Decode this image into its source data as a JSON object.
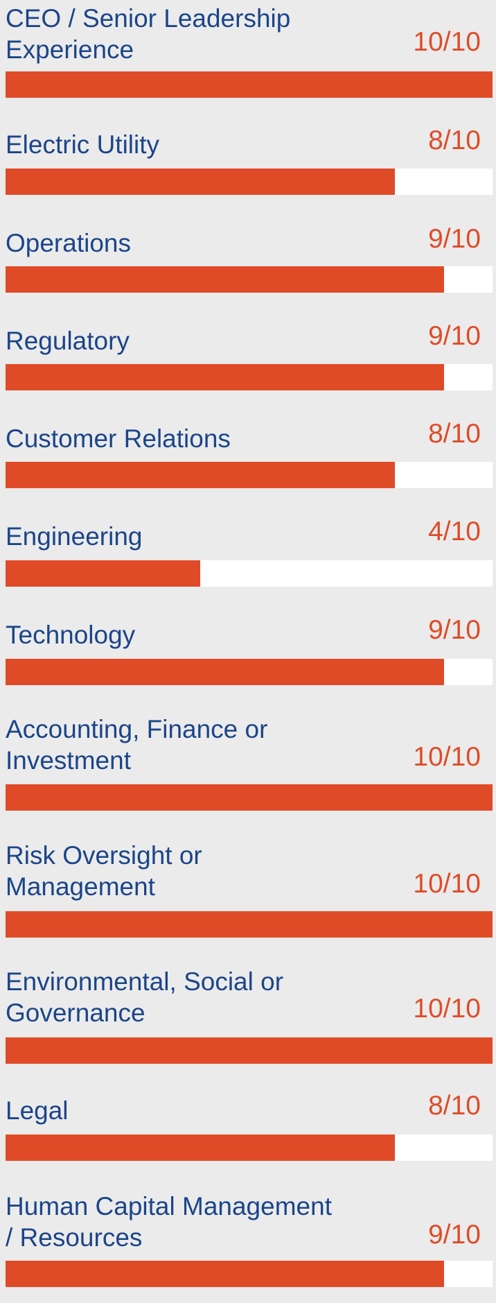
{
  "colors": {
    "background": "#ebebeb",
    "label": "#1b4589",
    "accent": "#e04b27",
    "track": "#ffffff"
  },
  "chart_data": {
    "type": "bar",
    "orientation": "horizontal",
    "max": 10,
    "items": [
      {
        "label": "CEO / Senior Leadership Experience",
        "lines": [
          "CEO / Senior Leadership",
          "Experience"
        ],
        "value": 10,
        "score_text": "10/10"
      },
      {
        "label": "Electric Utility",
        "lines": [
          "Electric Utility"
        ],
        "value": 8,
        "score_text": "8/10"
      },
      {
        "label": "Operations",
        "lines": [
          "Operations"
        ],
        "value": 9,
        "score_text": "9/10"
      },
      {
        "label": "Regulatory",
        "lines": [
          "Regulatory"
        ],
        "value": 9,
        "score_text": "9/10"
      },
      {
        "label": "Customer Relations",
        "lines": [
          "Customer Relations"
        ],
        "value": 8,
        "score_text": "8/10"
      },
      {
        "label": "Engineering",
        "lines": [
          "Engineering"
        ],
        "value": 4,
        "score_text": "4/10"
      },
      {
        "label": "Technology",
        "lines": [
          "Technology"
        ],
        "value": 9,
        "score_text": "9/10"
      },
      {
        "label": "Accounting, Finance or Investment",
        "lines": [
          "Accounting, Finance or",
          "Investment"
        ],
        "value": 10,
        "score_text": "10/10"
      },
      {
        "label": "Risk Oversight or Management",
        "lines": [
          "Risk Oversight or",
          "Management"
        ],
        "value": 10,
        "score_text": "10/10"
      },
      {
        "label": "Environmental, Social or Governance",
        "lines": [
          "Environmental, Social or",
          "Governance"
        ],
        "value": 10,
        "score_text": "10/10"
      },
      {
        "label": "Legal",
        "lines": [
          "Legal"
        ],
        "value": 8,
        "score_text": "8/10"
      },
      {
        "label": "Human Capital Management / Resources",
        "lines": [
          "Human Capital Management",
          "/ Resources"
        ],
        "value": 9,
        "score_text": "9/10"
      }
    ]
  }
}
